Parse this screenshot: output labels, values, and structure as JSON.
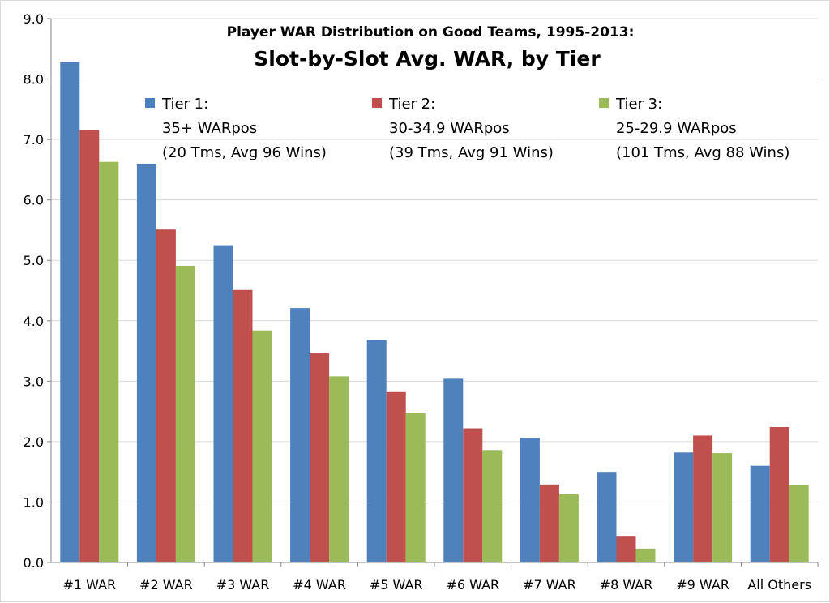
{
  "chart_data": {
    "type": "bar",
    "title": "Player WAR Distribution on Good Teams, 1995-2013:",
    "subtitle": "Slot-by-Slot Avg. WAR, by Tier",
    "xlabel": "",
    "ylabel": "",
    "ylim": [
      0,
      9
    ],
    "yticks": [
      "0.0",
      "1.0",
      "2.0",
      "3.0",
      "4.0",
      "5.0",
      "6.0",
      "7.0",
      "8.0",
      "9.0"
    ],
    "grid": true,
    "legend_position": "top-right",
    "categories": [
      "#1 WAR",
      "#2 WAR",
      "#3 WAR",
      "#4 WAR",
      "#5 WAR",
      "#6 WAR",
      "#7 WAR",
      "#8 WAR",
      "#9 WAR",
      "All Others"
    ],
    "series": [
      {
        "name": "Tier 1:",
        "line2": "35+ WARpos",
        "line3": "(20 Tms, Avg 96 Wins)",
        "color": "#4F81BD",
        "values": [
          8.28,
          6.6,
          5.25,
          4.21,
          3.68,
          3.04,
          2.06,
          1.5,
          1.82,
          1.6
        ]
      },
      {
        "name": "Tier 2:",
        "line2": "30-34.9 WARpos",
        "line3": "(39 Tms, Avg 91 Wins)",
        "color": "#C0504D",
        "values": [
          7.16,
          5.51,
          4.51,
          3.46,
          2.82,
          2.22,
          1.29,
          0.44,
          2.1,
          2.24
        ]
      },
      {
        "name": "Tier 3:",
        "line2": "25-29.9 WARpos",
        "line3": "(101 Tms, Avg 88 Wins)",
        "color": "#9BBB59",
        "values": [
          6.63,
          4.91,
          3.84,
          3.08,
          2.47,
          1.86,
          1.13,
          0.23,
          1.81,
          1.28
        ]
      }
    ]
  }
}
